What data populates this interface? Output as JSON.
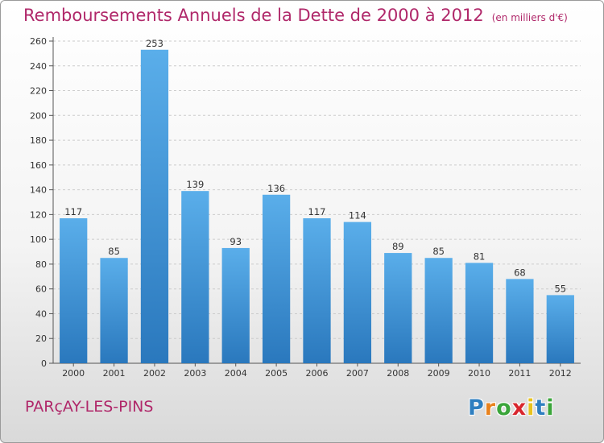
{
  "title": "Remboursements Annuels de la Dette de 2000 à 2012",
  "unit_note": "(en milliers d'€)",
  "place_name": "PARçAY-LES-PINS",
  "logo": {
    "letters": [
      "P",
      "r",
      "o",
      "x",
      "i",
      "t",
      "i"
    ],
    "colors": [
      "#2f7fc0",
      "#e8821e",
      "#3aa53a",
      "#d8262e",
      "#e8c21e",
      "#2f7fc0",
      "#3aa53a"
    ]
  },
  "colors": {
    "title": "#b0286a",
    "bar_top": "#5aaeea",
    "bar_bottom": "#2a78bd",
    "grid": "#cccccc"
  },
  "chart_data": {
    "type": "bar",
    "title": "Remboursements Annuels de la Dette de 2000 à 2012",
    "subtitle": "(en milliers d'€)",
    "xlabel": "",
    "ylabel": "",
    "categories": [
      "2000",
      "2001",
      "2002",
      "2003",
      "2004",
      "2005",
      "2006",
      "2007",
      "2008",
      "2009",
      "2010",
      "2011",
      "2012"
    ],
    "values": [
      117,
      85,
      253,
      139,
      93,
      136,
      117,
      114,
      89,
      85,
      81,
      68,
      55
    ],
    "ylim": [
      0,
      260
    ],
    "yticks": [
      0,
      20,
      40,
      60,
      80,
      100,
      120,
      140,
      160,
      180,
      200,
      220,
      240,
      260
    ],
    "grid": "horizontal dashed",
    "legend": "none"
  }
}
